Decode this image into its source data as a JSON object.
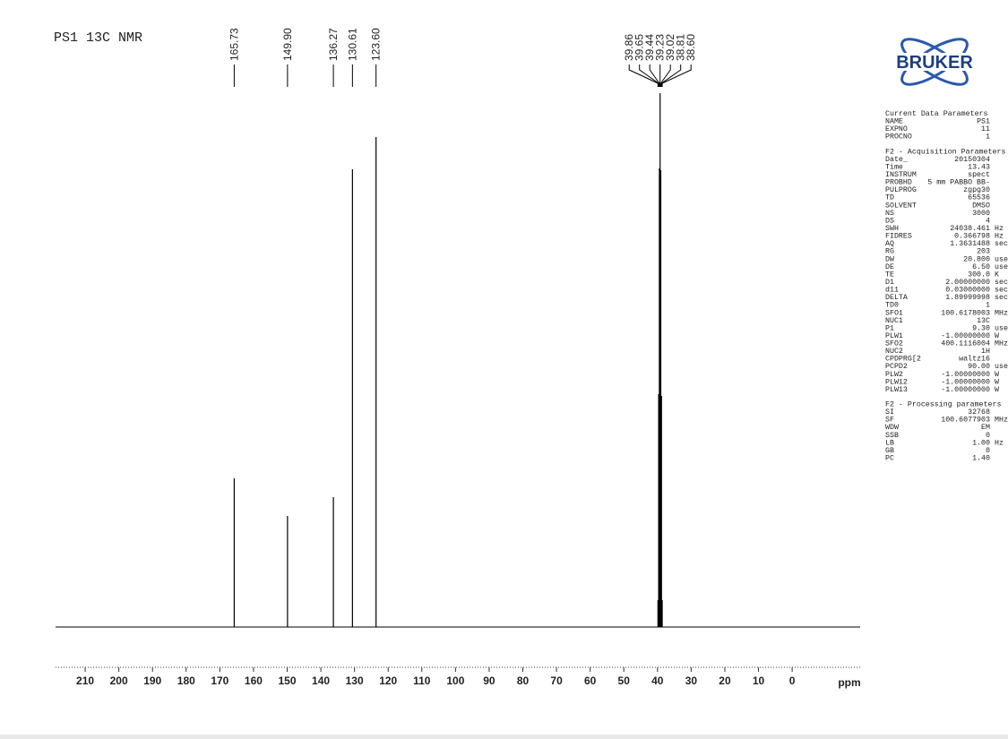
{
  "chart_data": {
    "type": "nmr",
    "title": "PS1 13C NMR",
    "x_label": "ppm",
    "x": [
      165.73,
      149.9,
      136.27,
      130.61,
      123.6,
      39.86,
      39.65,
      39.44,
      39.23,
      39.02,
      38.81,
      38.6
    ],
    "x_labels": [
      "165.73",
      "149.90",
      "136.27",
      "130.61",
      "123.60",
      "39.86",
      "39.65",
      "39.44",
      "39.23",
      "39.02",
      "38.81",
      "38.60"
    ],
    "values": [
      166,
      124,
      145,
      511,
      547,
      30,
      260,
      512,
      596,
      510,
      258,
      30
    ],
    "color": "#000000",
    "xlim": [
      218.8,
      -20.2
    ],
    "ylim": [
      0,
      600
    ],
    "xticks": [
      210,
      200,
      190,
      180,
      170,
      160,
      150,
      140,
      130,
      120,
      110,
      100,
      90,
      80,
      70,
      60,
      50,
      40,
      30,
      20,
      10,
      0
    ]
  },
  "logo": "BRUKER",
  "parameters": [
    {
      "title": "Current Data Parameters",
      "rows": [
        [
          "NAME",
          "PS1"
        ],
        [
          "EXPNO",
          "11"
        ],
        [
          "PROCNO",
          "1"
        ]
      ]
    },
    {
      "title": "F2 - Acquisition Parameters",
      "rows": [
        [
          "Date_",
          "20150304"
        ],
        [
          "Time",
          "13.43"
        ],
        [
          "INSTRUM",
          "spect"
        ],
        [
          "PROBHD",
          "5 mm PABBO BB-"
        ],
        [
          "PULPROG",
          "zgpg30"
        ],
        [
          "TD",
          "65536"
        ],
        [
          "SOLVENT",
          "DMSO"
        ],
        [
          "NS",
          "3000"
        ],
        [
          "DS",
          "4"
        ],
        [
          "SWH",
          "24038.461",
          "Hz"
        ],
        [
          "FIDRES",
          "0.366798",
          "Hz"
        ],
        [
          "AQ",
          "1.3631488",
          "sec"
        ],
        [
          "RG",
          "203"
        ],
        [
          "DW",
          "20.800",
          "use"
        ],
        [
          "DE",
          "6.50",
          "use"
        ],
        [
          "TE",
          "300.0",
          "K"
        ],
        [
          "D1",
          "2.00000000",
          "sec"
        ],
        [
          "d11",
          "0.03000000",
          "sec"
        ],
        [
          "DELTA",
          "1.89999998",
          "sec"
        ],
        [
          "TD0",
          "1"
        ],
        [
          "SFO1",
          "100.6178003",
          "MHz"
        ],
        [
          "NUC1",
          "13C"
        ],
        [
          "P1",
          "9.30",
          "use"
        ],
        [
          "PLW1",
          "-1.00000000",
          "W"
        ],
        [
          "SFO2",
          "400.1116004",
          "MHz"
        ],
        [
          "NUC2",
          "1H"
        ],
        [
          "CPDPRG[2",
          "waltz16"
        ],
        [
          "PCPD2",
          "90.00",
          "use"
        ],
        [
          "PLW2",
          "-1.00000000",
          "W"
        ],
        [
          "PLW12",
          "-1.00000000",
          "W"
        ],
        [
          "PLW13",
          "-1.00000000",
          "W"
        ]
      ]
    },
    {
      "title": "F2 - Processing parameters",
      "rows": [
        [
          "SI",
          "32768"
        ],
        [
          "SF",
          "100.6077903",
          "MHz"
        ],
        [
          "WDW",
          "EM"
        ],
        [
          "SSB",
          "0"
        ],
        [
          "LB",
          "1.00",
          "Hz"
        ],
        [
          "GB",
          "0"
        ],
        [
          "PC",
          "1.40"
        ]
      ]
    }
  ]
}
